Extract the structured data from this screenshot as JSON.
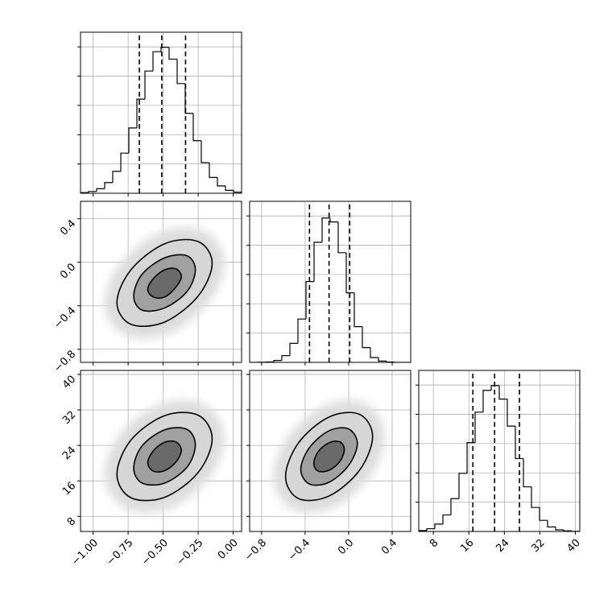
{
  "chart_data": [
    {
      "type": "histogram",
      "bins": [
        -1.09,
        -1.0325,
        -0.975,
        -0.9175,
        -0.86,
        -0.8025,
        -0.745,
        -0.6875,
        -0.63,
        -0.5725,
        -0.515,
        -0.4575,
        -0.4,
        -0.3425,
        -0.285,
        -0.2275,
        -0.17,
        -0.1125,
        -0.055,
        0.0025,
        0.06
      ],
      "values": [
        4,
        12,
        31,
        73,
        150,
        274,
        446,
        643,
        835,
        967,
        997,
        916,
        749,
        546,
        359,
        209,
        108,
        50,
        20,
        8
      ],
      "quantiles": [
        -0.67,
        -0.51,
        -0.34
      ],
      "color": "#000000",
      "xlim": [
        -1.09,
        0.06
      ],
      "xticks": [
        -1,
        -0.75,
        -0.5,
        -0.25,
        0
      ],
      "ylim": [
        0,
        1100
      ],
      "yticks": [
        200,
        400,
        600,
        800,
        1000
      ],
      "grid": true
    },
    {
      "type": "contour",
      "contours": [
        {
          "x": [
            -0.15,
            -0.25,
            -0.49,
            -0.73,
            -0.83,
            -0.73,
            -0.49,
            -0.25
          ],
          "y": [
            -0.01,
            0.19,
            0.17,
            -0.07,
            -0.37,
            -0.57,
            -0.55,
            -0.31
          ]
        },
        {
          "x": [
            -0.27,
            -0.33,
            -0.49,
            -0.65,
            -0.71,
            -0.65,
            -0.49,
            -0.33
          ],
          "y": [
            -0.07,
            0.06,
            0.04,
            -0.11,
            -0.31,
            -0.44,
            -0.42,
            -0.27
          ]
        },
        {
          "x": [
            -0.37,
            -0.41,
            -0.49,
            -0.57,
            -0.61,
            -0.57,
            -0.49,
            -0.41
          ],
          "y": [
            -0.13,
            -0.06,
            -0.07,
            -0.15,
            -0.25,
            -0.32,
            -0.32,
            -0.23
          ]
        }
      ],
      "color": "#000000",
      "xlim": [
        -1.09,
        0.06
      ],
      "xticks": [
        -1,
        -0.75,
        -0.5,
        -0.25,
        0
      ],
      "ylim": [
        -0.92,
        0.56
      ],
      "yticks": [
        {
          "value": -0.8,
          "label": "−0.8"
        },
        {
          "value": -0.4,
          "label": "−0.4"
        },
        {
          "value": 0,
          "label": "0.0"
        },
        0.4
      ],
      "grid": true
    },
    {
      "type": "histogram",
      "bins": [
        -0.91,
        -0.836,
        -0.762,
        -0.688,
        -0.614,
        -0.54,
        -0.466,
        -0.392,
        -0.318,
        -0.244,
        -0.17,
        -0.096,
        -0.022,
        0.052,
        0.126,
        0.2,
        0.274,
        0.348,
        0.422,
        0.496,
        0.57
      ],
      "values": [
        0,
        1,
        3,
        13,
        46,
        130,
        296,
        552,
        820,
        986,
        959,
        749,
        475,
        244,
        101,
        33,
        9,
        2,
        0,
        0
      ],
      "quantiles": [
        -0.36,
        -0.18,
        0.01
      ],
      "color": "#000000",
      "xlim": [
        -0.91,
        0.57
      ],
      "xticks": [
        -0.8,
        -0.4,
        0,
        0.4
      ],
      "ylim": [
        0,
        1100
      ],
      "yticks": [
        200,
        400,
        600,
        800,
        1000
      ],
      "grid": true
    },
    {
      "type": "contour",
      "contours": [
        {
          "x": [
            -0.15,
            -0.25,
            -0.49,
            -0.73,
            -0.83,
            -0.73,
            -0.49,
            -0.25
          ],
          "y": [
            25.5,
            30.8,
            30.7,
            25.2,
            17.5,
            12.2,
            12.3,
            17.9
          ]
        },
        {
          "x": [
            -0.27,
            -0.33,
            -0.49,
            -0.65,
            -0.71,
            -0.65,
            -0.49,
            -0.33
          ],
          "y": [
            24.1,
            27.6,
            27.5,
            23.9,
            18.9,
            15.5,
            15.5,
            19.1
          ]
        },
        {
          "x": [
            -0.37,
            -0.41,
            -0.49,
            -0.57,
            -0.61,
            -0.57,
            -0.49,
            -0.41
          ],
          "y": [
            22.9,
            24.8,
            24.7,
            22.8,
            20.1,
            18.2,
            18.3,
            20.2
          ]
        }
      ],
      "color": "#000000",
      "xlim": [
        -1.09,
        0.06
      ],
      "xticks": [
        {
          "value": -1,
          "label": "−1.00"
        },
        {
          "value": -0.75,
          "label": "−0.75"
        },
        {
          "value": -0.5,
          "label": "−0.50"
        },
        {
          "value": -0.25,
          "label": "−0.25"
        },
        {
          "value": 0,
          "label": "0.00"
        }
      ],
      "ylim": [
        4.6,
        40.9
      ],
      "yticks": [
        8,
        16,
        24,
        32,
        40
      ],
      "grid": true
    },
    {
      "type": "contour",
      "contours": [
        {
          "x": [
            0.22,
            0.1,
            -0.18,
            -0.46,
            -0.58,
            -0.46,
            -0.18,
            0.1
          ],
          "y": [
            26.0,
            31.0,
            30.4,
            24.6,
            17.0,
            12.0,
            12.6,
            18.4
          ]
        },
        {
          "x": [
            0.08,
            0.0,
            -0.18,
            -0.36,
            -0.44,
            -0.36,
            -0.18,
            0.0
          ],
          "y": [
            24.4,
            27.7,
            27.3,
            23.5,
            18.6,
            15.3,
            15.7,
            19.5
          ]
        },
        {
          "x": [
            -0.04,
            -0.08,
            -0.18,
            -0.28,
            -0.32,
            -0.28,
            -0.18,
            -0.08
          ],
          "y": [
            23.1,
            24.8,
            24.6,
            22.6,
            19.9,
            18.2,
            18.4,
            20.4
          ]
        }
      ],
      "color": "#000000",
      "xlim": [
        -0.91,
        0.57
      ],
      "xticks": [
        {
          "value": -0.8,
          "label": "−0.8"
        },
        {
          "value": -0.4,
          "label": "−0.4"
        },
        {
          "value": 0,
          "label": "0.0"
        },
        0.4
      ],
      "ylim": [
        4.6,
        40.9
      ],
      "yticks": [
        8,
        16,
        24,
        32,
        40
      ],
      "grid": true
    },
    {
      "type": "histogram",
      "bins": [
        4.7,
        6.515,
        8.33,
        10.145,
        11.96,
        13.775,
        15.59,
        17.405,
        19.22,
        21.035,
        22.85,
        24.665,
        26.48,
        28.295,
        30.11,
        31.925,
        33.74,
        35.555,
        37.37,
        39.185,
        41.0
      ],
      "values": [
        6,
        19,
        50,
        113,
        224,
        397,
        607,
        815,
        964,
        996,
        904,
        720,
        498,
        305,
        164,
        76,
        31,
        11,
        4,
        1
      ],
      "quantiles": [
        16.9,
        21.8,
        27.4
      ],
      "color": "#000000",
      "xlim": [
        4.7,
        41.0
      ],
      "xticks": [
        8,
        16,
        24,
        32,
        40
      ],
      "ylim": [
        0,
        1100
      ],
      "yticks": [
        200,
        400,
        600,
        800,
        1000
      ],
      "grid": true
    }
  ]
}
